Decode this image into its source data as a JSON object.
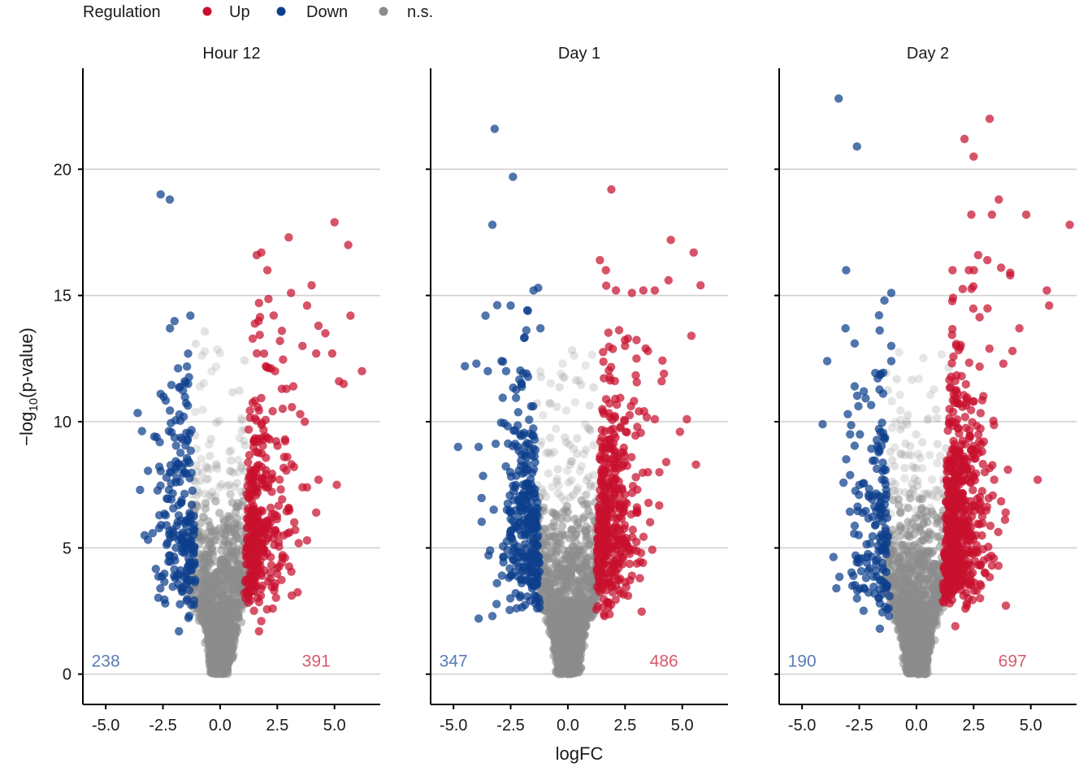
{
  "legend": {
    "title": "Regulation",
    "items": [
      {
        "label": "Up",
        "color": "#C8102E"
      },
      {
        "label": "Down",
        "color": "#0C3F8C"
      },
      {
        "label": "n.s.",
        "color": "#8C8C8C"
      }
    ]
  },
  "chart_data": {
    "type": "scatter",
    "subtype": "volcano",
    "xlabel": "logFC",
    "ylabel_parts": {
      "prefix": "−log",
      "subscript": "10",
      "suffix": "(p-value)"
    },
    "xlim": [
      -6,
      7
    ],
    "ylim": [
      -1.2,
      24
    ],
    "x_ticks": [
      -5.0,
      -2.5,
      0.0,
      2.5,
      5.0
    ],
    "x_tick_labels": [
      "-5.0",
      "-2.5",
      "0.0",
      "2.5",
      "5.0"
    ],
    "y_ticks": [
      0,
      5,
      10,
      15,
      20
    ],
    "y_tick_labels": [
      "0",
      "5",
      "10",
      "15",
      "20"
    ],
    "grid": "horizontal major",
    "legend_position": "top-left",
    "colors": {
      "up": "#C8102E",
      "down": "#0C3F8C",
      "ns": "#8C8C8C"
    },
    "panels": [
      {
        "title": "Hour 12",
        "down_count": "238",
        "up_count": "391",
        "counts": {
          "down": 238,
          "up": 391
        },
        "highlighted_points": {
          "down": [
            [
              -2.6,
              19.0
            ],
            [
              -2.2,
              18.8
            ],
            [
              -1.3,
              14.2
            ],
            [
              -2.6,
              11.1
            ],
            [
              -1.4,
              11.5
            ],
            [
              -3.5,
              7.3
            ],
            [
              -3.3,
              5.5
            ],
            [
              -2.3,
              5.2
            ],
            [
              -2.4,
              2.8
            ],
            [
              -1.8,
              1.7
            ]
          ],
          "up": [
            [
              5.0,
              17.9
            ],
            [
              5.6,
              17.0
            ],
            [
              3.0,
              17.3
            ],
            [
              1.8,
              16.7
            ],
            [
              1.6,
              16.6
            ],
            [
              3.1,
              15.1
            ],
            [
              4.0,
              15.4
            ],
            [
              5.7,
              14.2
            ],
            [
              3.8,
              14.6
            ],
            [
              2.7,
              13.6
            ],
            [
              4.3,
              13.8
            ],
            [
              4.6,
              13.5
            ],
            [
              3.6,
              13.0
            ],
            [
              4.2,
              12.7
            ],
            [
              4.9,
              12.7
            ],
            [
              6.2,
              12.0
            ],
            [
              5.2,
              11.6
            ],
            [
              5.4,
              11.5
            ],
            [
              3.5,
              10.3
            ],
            [
              3.7,
              10.0
            ],
            [
              5.1,
              7.5
            ],
            [
              4.3,
              7.7
            ],
            [
              3.8,
              7.4
            ],
            [
              3.6,
              7.4
            ],
            [
              4.2,
              6.4
            ],
            [
              3.8,
              5.3
            ],
            [
              1.7,
              14.7
            ],
            [
              2.0,
              12.2
            ],
            [
              2.4,
              12.0
            ],
            [
              2.7,
              11.3
            ],
            [
              2.9,
              11.3
            ],
            [
              3.2,
              11.4
            ],
            [
              2.8,
              8.6
            ],
            [
              2.3,
              2.6
            ],
            [
              1.8,
              2.1
            ],
            [
              1.7,
              1.7
            ]
          ]
        },
        "n_sig_scale": 1.0,
        "spread": 1.0
      },
      {
        "title": "Day 1",
        "down_count": "347",
        "up_count": "486",
        "counts": {
          "down": 347,
          "up": 486
        },
        "highlighted_points": {
          "down": [
            [
              -3.2,
              21.6
            ],
            [
              -2.4,
              19.7
            ],
            [
              -3.3,
              17.8
            ],
            [
              -1.3,
              15.3
            ],
            [
              -1.5,
              15.2
            ],
            [
              -2.5,
              14.6
            ],
            [
              -3.6,
              14.2
            ],
            [
              -1.2,
              13.7
            ],
            [
              -4.5,
              12.2
            ],
            [
              -2.9,
              12.4
            ],
            [
              -4.8,
              9.0
            ],
            [
              -3.9,
              9.0
            ],
            [
              -3.4,
              4.9
            ],
            [
              -3.1,
              3.6
            ],
            [
              -3.9,
              2.2
            ],
            [
              -3.3,
              2.3
            ],
            [
              -2.7,
              12.0
            ],
            [
              -3.5,
              12.0
            ],
            [
              -4.0,
              12.3
            ]
          ],
          "up": [
            [
              1.9,
              19.2
            ],
            [
              4.5,
              17.2
            ],
            [
              5.5,
              16.7
            ],
            [
              1.4,
              16.4
            ],
            [
              5.8,
              15.4
            ],
            [
              4.4,
              15.6
            ],
            [
              3.8,
              15.2
            ],
            [
              3.3,
              15.2
            ],
            [
              2.8,
              15.1
            ],
            [
              2.1,
              15.2
            ],
            [
              5.4,
              13.4
            ],
            [
              3.4,
              12.9
            ],
            [
              3.5,
              12.8
            ],
            [
              4.2,
              11.9
            ],
            [
              5.2,
              10.1
            ],
            [
              4.3,
              8.4
            ],
            [
              5.6,
              8.3
            ],
            [
              4.0,
              8.0
            ],
            [
              3.5,
              8.0
            ],
            [
              2.5,
              5.0
            ],
            [
              3.2,
              4.8
            ],
            [
              2.8,
              3.9
            ],
            [
              2.3,
              3.2
            ],
            [
              1.6,
              2.3
            ],
            [
              2.5,
              13.0
            ],
            [
              3.0,
              12.5
            ],
            [
              4.1,
              11.6
            ],
            [
              3.8,
              10.1
            ],
            [
              4.9,
              9.6
            ]
          ]
        },
        "n_sig_scale": 1.2,
        "spread": 1.15
      },
      {
        "title": "Day 2",
        "down_count": "190",
        "up_count": "697",
        "counts": {
          "down": 190,
          "up": 697
        },
        "highlighted_points": {
          "down": [
            [
              -3.4,
              22.8
            ],
            [
              -2.6,
              20.9
            ],
            [
              -1.1,
              15.1
            ],
            [
              -1.4,
              14.8
            ],
            [
              -3.1,
              13.7
            ],
            [
              -2.7,
              13.1
            ],
            [
              -3.9,
              12.4
            ],
            [
              -4.1,
              9.9
            ],
            [
              -1.1,
              13.0
            ],
            [
              -1.1,
              12.4
            ],
            [
              -3.5,
              3.4
            ],
            [
              -2.8,
              3.5
            ],
            [
              -2.6,
              3.0
            ],
            [
              -1.6,
              2.8
            ],
            [
              -1.2,
              2.3
            ],
            [
              -1.6,
              1.8
            ],
            [
              -2.7,
              11.4
            ],
            [
              -2.3,
              11.2
            ],
            [
              -2.9,
              9.5
            ],
            [
              -3.0,
              10.3
            ]
          ],
          "up": [
            [
              3.2,
              22.0
            ],
            [
              2.1,
              21.2
            ],
            [
              2.5,
              20.5
            ],
            [
              3.6,
              18.8
            ],
            [
              4.8,
              18.2
            ],
            [
              6.7,
              17.8
            ],
            [
              3.3,
              18.2
            ],
            [
              2.4,
              18.2
            ],
            [
              5.7,
              15.2
            ],
            [
              5.8,
              14.6
            ],
            [
              4.5,
              13.7
            ],
            [
              4.1,
              15.9
            ],
            [
              4.1,
              15.8
            ],
            [
              5.3,
              7.7
            ],
            [
              4.0,
              8.1
            ],
            [
              3.4,
              7.7
            ],
            [
              3.9,
              6.4
            ],
            [
              2.4,
              4.8
            ],
            [
              3.3,
              4.3
            ],
            [
              2.8,
              4.3
            ],
            [
              2.0,
              3.7
            ],
            [
              1.7,
              1.9
            ],
            [
              2.7,
              16.6
            ],
            [
              3.1,
              16.4
            ],
            [
              3.7,
              16.1
            ],
            [
              4.2,
              12.8
            ],
            [
              3.8,
              12.3
            ]
          ]
        },
        "n_sig_scale": 1.0,
        "spread": 1.1
      }
    ]
  }
}
